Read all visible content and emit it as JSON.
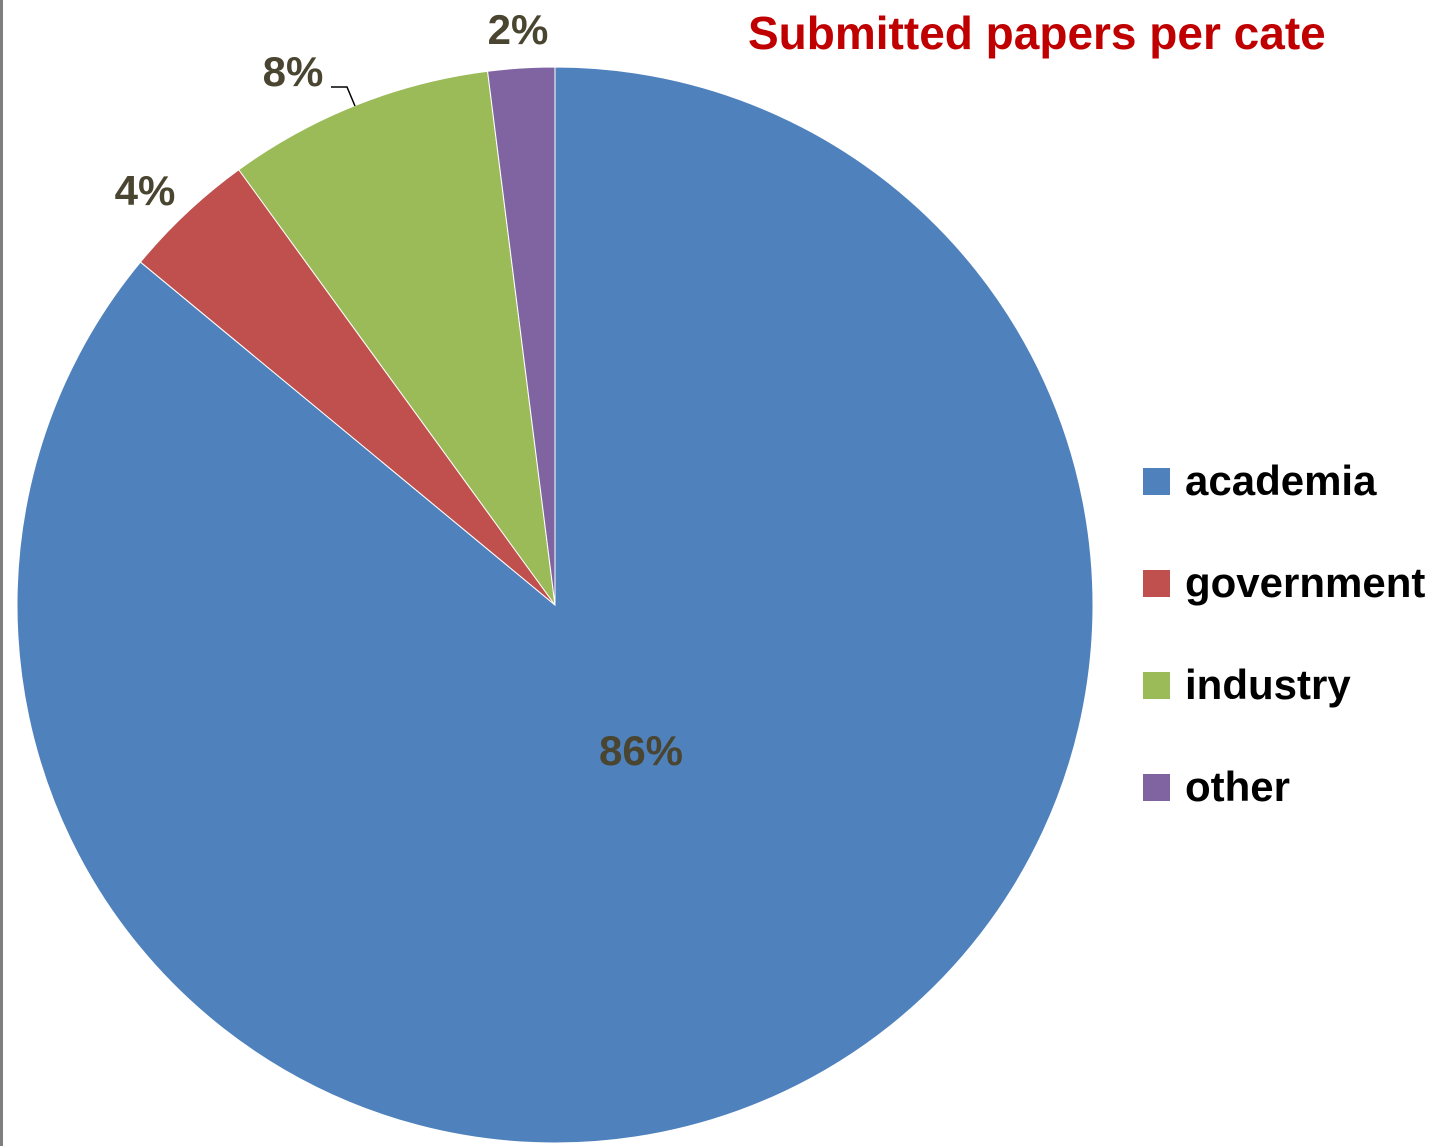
{
  "chart_data": {
    "type": "pie",
    "title": "Submitted papers per cate",
    "categories": [
      "academia",
      "government",
      "industry",
      "other"
    ],
    "values": [
      86,
      4,
      8,
      2
    ],
    "labels": [
      "86%",
      "4%",
      "8%",
      "2%"
    ],
    "colors": [
      "#4f81bd",
      "#c0504d",
      "#9bbb59",
      "#8064a2"
    ],
    "start_angle": "12 o'clock",
    "direction": "clockwise",
    "legend": "right"
  }
}
